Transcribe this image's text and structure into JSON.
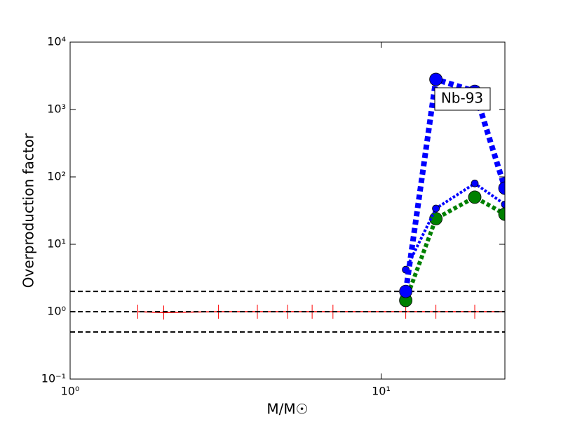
{
  "chart_data": {
    "type": "line",
    "xlabel": "M/M☉",
    "ylabel": "Overproduction factor",
    "annotation": "Nb-93",
    "xscale": "log",
    "yscale": "log",
    "xlim": [
      1,
      25
    ],
    "ylim": [
      0.1,
      10000
    ],
    "xticks": [
      {
        "value": 1,
        "label": "10⁰"
      },
      {
        "value": 10,
        "label": "10¹"
      }
    ],
    "yticks": [
      {
        "value": 0.1,
        "label": "10⁻¹"
      },
      {
        "value": 1,
        "label": "10⁰"
      },
      {
        "value": 10,
        "label": "10¹"
      },
      {
        "value": 100,
        "label": "10²"
      },
      {
        "value": 1000,
        "label": "10³"
      },
      {
        "value": 10000,
        "label": "10⁴"
      }
    ],
    "hlines": [
      0.5,
      1,
      2
    ],
    "hline_color": "#000000",
    "series": [
      {
        "color": "#ff0000",
        "marker": "tick",
        "linestyle": "solid",
        "x": [
          1.65,
          2,
          3,
          4,
          5,
          6,
          7,
          12,
          15,
          20,
          25
        ],
        "values": [
          1,
          0.97,
          1,
          1,
          1,
          1,
          1,
          1,
          1,
          1,
          1
        ]
      },
      {
        "color": "#008000",
        "marker": "circle",
        "linestyle": "dotted",
        "x": [
          12,
          15,
          20,
          25
        ],
        "values": [
          1.47,
          24,
          50,
          28
        ]
      },
      {
        "color": "#0000ff",
        "marker": "circle",
        "linestyle": "dotted",
        "x": [
          12,
          15,
          20,
          25
        ],
        "values": [
          4.2,
          34,
          80,
          39
        ]
      },
      {
        "color": "#0000ff",
        "marker": "circle",
        "linestyle": "dotted",
        "x": [
          12,
          15,
          20,
          25
        ],
        "values": [
          2.0,
          2800,
          1860,
          68
        ]
      }
    ]
  }
}
